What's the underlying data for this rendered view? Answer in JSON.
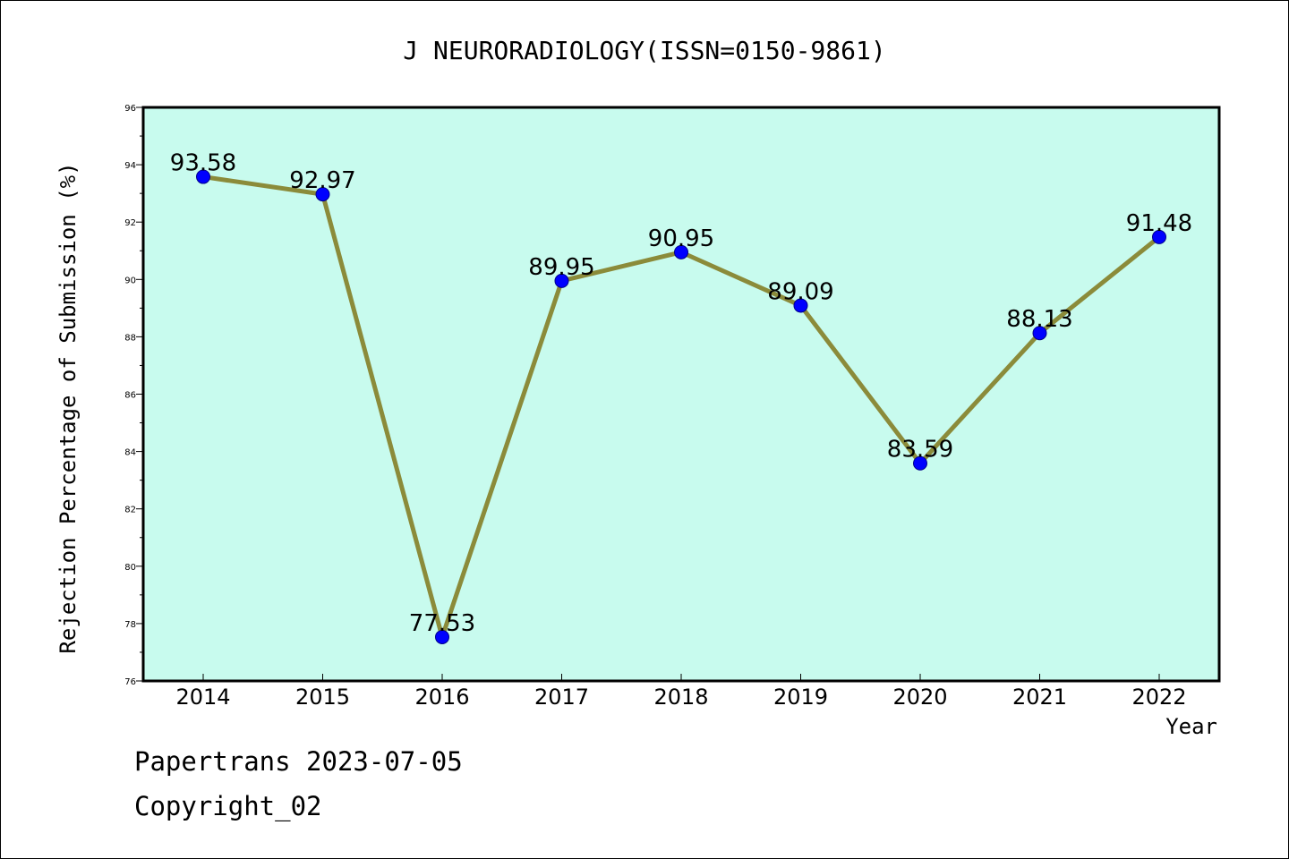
{
  "chart_data": {
    "type": "line",
    "title": "J NEURORADIOLOGY(ISSN=0150-9861)",
    "xlabel": "Year",
    "ylabel": "Rejection Percentage of Submission (%)",
    "categories": [
      "2014",
      "2015",
      "2016",
      "2017",
      "2018",
      "2019",
      "2020",
      "2021",
      "2022"
    ],
    "values": [
      93.58,
      92.97,
      77.53,
      89.95,
      90.95,
      89.09,
      83.59,
      88.13,
      91.48
    ],
    "data_labels": [
      "93.58",
      "92.97",
      "77.53",
      "89.95",
      "90.95",
      "89.09",
      "83.59",
      "88.13",
      "91.48"
    ],
    "ylim": [
      76,
      96
    ],
    "yticks": [
      76,
      78,
      80,
      82,
      84,
      86,
      88,
      90,
      92,
      94,
      96
    ],
    "ytick_labels": [
      "76",
      "78",
      "80",
      "82",
      "84",
      "86",
      "88",
      "90",
      "92",
      "94",
      "96"
    ],
    "grid": false,
    "colors": {
      "plot_background": "#c8fbee",
      "line": "#8b8b3a",
      "marker": "#0000ff"
    }
  },
  "footer": {
    "line1": "Papertrans 2023-07-05",
    "line2": "Copyright_02"
  }
}
